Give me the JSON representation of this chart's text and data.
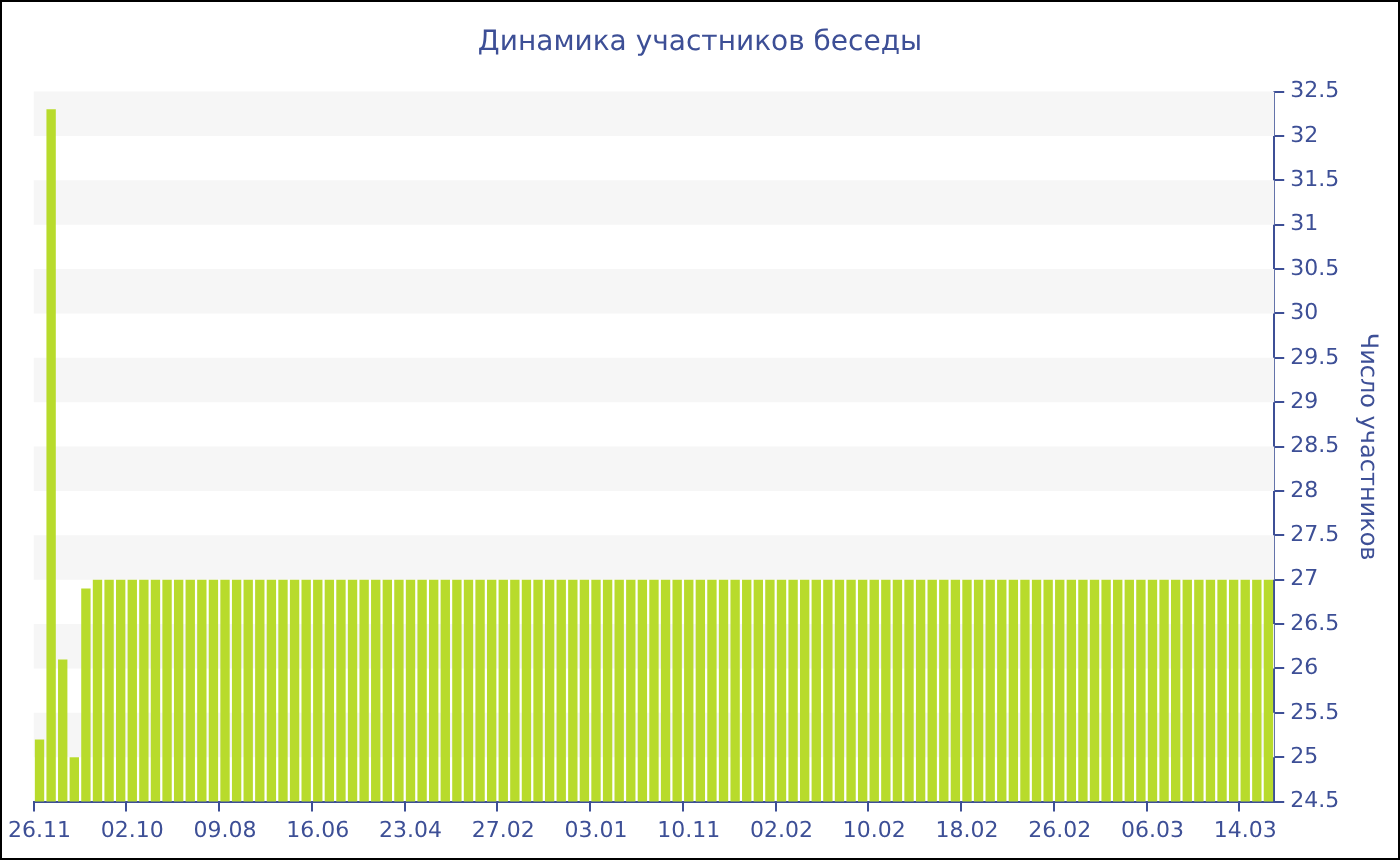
{
  "chart_data": {
    "type": "bar",
    "title": "Динамика участников беседы",
    "ylabel": "Число участников",
    "categories": [
      "26.11",
      null,
      null,
      null,
      null,
      null,
      null,
      null,
      "02.10",
      null,
      null,
      null,
      null,
      null,
      null,
      null,
      "09.08",
      null,
      null,
      null,
      null,
      null,
      null,
      null,
      "16.06",
      null,
      null,
      null,
      null,
      null,
      null,
      null,
      "23.04",
      null,
      null,
      null,
      null,
      null,
      null,
      null,
      "27.02",
      null,
      null,
      null,
      null,
      null,
      null,
      null,
      "03.01",
      null,
      null,
      null,
      null,
      null,
      null,
      null,
      "10.11",
      null,
      null,
      null,
      null,
      null,
      null,
      null,
      "02.02",
      null,
      null,
      null,
      null,
      null,
      null,
      null,
      "10.02",
      null,
      null,
      null,
      null,
      null,
      null,
      null,
      "18.02",
      null,
      null,
      null,
      null,
      null,
      null,
      null,
      "26.02",
      null,
      null,
      null,
      null,
      null,
      null,
      null,
      "06.03",
      null,
      null,
      null,
      null,
      null,
      null,
      null,
      "14.03",
      null,
      null
    ],
    "values": [
      25.2,
      32.3,
      26.1,
      25.0,
      26.9,
      27,
      27,
      27,
      27,
      27,
      27,
      27,
      27,
      27,
      27,
      27,
      27,
      27,
      27,
      27,
      27,
      27,
      27,
      27,
      27,
      27,
      27,
      27,
      27,
      27,
      27,
      27,
      27,
      27,
      27,
      27,
      27,
      27,
      27,
      27,
      27,
      27,
      27,
      27,
      27,
      27,
      27,
      27,
      27,
      27,
      27,
      27,
      27,
      27,
      27,
      27,
      27,
      27,
      27,
      27,
      27,
      27,
      27,
      27,
      27,
      27,
      27,
      27,
      27,
      27,
      27,
      27,
      27,
      27,
      27,
      27,
      27,
      27,
      27,
      27,
      27,
      27,
      27,
      27,
      27,
      27,
      27,
      27,
      27,
      27,
      27,
      27,
      27,
      27,
      27,
      27,
      27,
      27,
      27,
      27,
      27,
      27,
      27,
      27,
      27,
      27,
      27
    ],
    "color": "#b8db2c",
    "ylim": [
      24.5,
      32.5
    ],
    "yticks": [
      24.5,
      25,
      25.5,
      26,
      26.5,
      27,
      27.5,
      28,
      28.5,
      29,
      29.5,
      30,
      30.5,
      31,
      31.5,
      32,
      32.5
    ],
    "bands": [
      {
        "axis": "y",
        "from": 32,
        "to": 32.5,
        "color": "#f6f6f6"
      },
      {
        "axis": "y",
        "from": 31,
        "to": 31.5,
        "color": "#f6f6f6"
      },
      {
        "axis": "y",
        "from": 30,
        "to": 30.5,
        "color": "#f6f6f6"
      },
      {
        "axis": "y",
        "from": 29,
        "to": 29.5,
        "color": "#f6f6f6"
      },
      {
        "axis": "y",
        "from": 28,
        "to": 28.5,
        "color": "#f6f6f6"
      },
      {
        "axis": "y",
        "from": 27,
        "to": 27.5,
        "color": "#f6f6f6"
      },
      {
        "axis": "y",
        "from": 26,
        "to": 26.5,
        "color": "#f6f6f6"
      },
      {
        "axis": "y",
        "from": 25,
        "to": 25.5,
        "color": "#f6f6f6"
      }
    ],
    "legend": false
  }
}
